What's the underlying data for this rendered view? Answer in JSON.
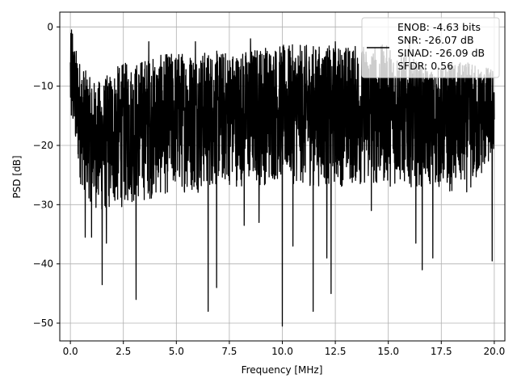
{
  "chart_data": {
    "type": "line",
    "title": "",
    "xlabel": "Frequency [MHz]",
    "ylabel": "PSD [dB]",
    "xlim": [
      -0.5,
      20.5
    ],
    "ylim": [
      -53,
      2.5
    ],
    "x_ticks": [
      0.0,
      2.5,
      5.0,
      7.5,
      10.0,
      12.5,
      15.0,
      17.5,
      20.0
    ],
    "x_tick_labels": [
      "0.0",
      "2.5",
      "5.0",
      "7.5",
      "10.0",
      "12.5",
      "15.0",
      "17.5",
      "20.0"
    ],
    "y_ticks": [
      0,
      -10,
      -20,
      -30,
      -40,
      -50
    ],
    "y_tick_labels": [
      "0",
      "−10",
      "−20",
      "−30",
      "−40",
      "−50"
    ],
    "grid": true,
    "legend_position": "top-right",
    "series": [
      {
        "color": "#000000",
        "x_range": [
          0,
          20
        ],
        "baseline_median": -14,
        "envelope_upper": [
          [
            0.0,
            -0.8
          ],
          [
            0.5,
            -6
          ],
          [
            1.0,
            -9
          ],
          [
            1.5,
            -9
          ],
          [
            2.0,
            -7
          ],
          [
            2.5,
            -6
          ],
          [
            3.0,
            -6
          ],
          [
            3.5,
            -5
          ],
          [
            4.0,
            -5
          ],
          [
            5.0,
            -4
          ],
          [
            6.0,
            -4
          ],
          [
            7.0,
            -4
          ],
          [
            8.0,
            -4
          ],
          [
            9.0,
            -3
          ],
          [
            10.0,
            -3
          ],
          [
            11.0,
            -3
          ],
          [
            12.0,
            -3
          ],
          [
            13.0,
            -3
          ],
          [
            14.0,
            -3
          ],
          [
            15.0,
            -3
          ],
          [
            16.0,
            -5
          ],
          [
            17.0,
            -7
          ],
          [
            18.0,
            -6
          ],
          [
            19.0,
            -6
          ],
          [
            20.0,
            -7
          ]
        ],
        "envelope_lower": [
          [
            0.0,
            -18
          ],
          [
            0.5,
            -27
          ],
          [
            1.0,
            -30
          ],
          [
            1.5,
            -32
          ],
          [
            2.0,
            -31
          ],
          [
            3.0,
            -30
          ],
          [
            4.0,
            -29
          ],
          [
            5.0,
            -28
          ],
          [
            6.0,
            -28
          ],
          [
            7.0,
            -27
          ],
          [
            8.0,
            -27
          ],
          [
            9.0,
            -27
          ],
          [
            10.0,
            -26
          ],
          [
            11.0,
            -27
          ],
          [
            12.0,
            -27
          ],
          [
            13.0,
            -27
          ],
          [
            14.0,
            -27
          ],
          [
            15.0,
            -27
          ],
          [
            16.0,
            -27
          ],
          [
            17.0,
            -27
          ],
          [
            18.0,
            -28
          ],
          [
            19.0,
            -28
          ],
          [
            20.0,
            -22
          ]
        ],
        "peaks": [
          [
            0.05,
            -0.5
          ],
          [
            0.1,
            -1.2
          ],
          [
            0.15,
            -5
          ],
          [
            3.7,
            -2.5
          ],
          [
            5.9,
            -2.5
          ],
          [
            8.2,
            0.0
          ],
          [
            8.5,
            -2.0
          ],
          [
            12.5,
            -2.5
          ],
          [
            16.0,
            -1.8
          ]
        ],
        "notches": [
          [
            0.7,
            -35.5
          ],
          [
            1.0,
            -35.5
          ],
          [
            1.5,
            -43.5
          ],
          [
            1.7,
            -36.5
          ],
          [
            3.1,
            -46.0
          ],
          [
            6.5,
            -48.0
          ],
          [
            6.9,
            -44.0
          ],
          [
            8.2,
            -33.5
          ],
          [
            8.9,
            -33.0
          ],
          [
            10.0,
            -50.5
          ],
          [
            10.5,
            -37.0
          ],
          [
            11.45,
            -48.0
          ],
          [
            12.1,
            -39.0
          ],
          [
            12.3,
            -45.0
          ],
          [
            14.2,
            -31.0
          ],
          [
            16.6,
            -41.0
          ],
          [
            16.3,
            -36.5
          ],
          [
            17.1,
            -39.0
          ],
          [
            19.9,
            -39.5
          ]
        ]
      }
    ],
    "legend": {
      "entries": [
        "ENOB: -4.63 bits",
        "SNR: -26.07 dB",
        "SINAD: -26.09 dB",
        "SFDR: 0.56"
      ]
    }
  }
}
